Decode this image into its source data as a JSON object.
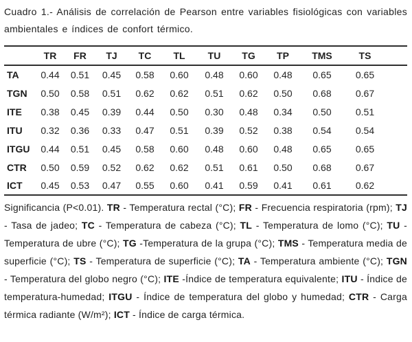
{
  "caption": "Cuadro 1.- Análisis de correlación de Pearson entre variables fisiológicas con variables ambientales e índices de confort térmico.",
  "table": {
    "columns": [
      "TR",
      "FR",
      "TJ",
      "TC",
      "TL",
      "TU",
      "TG",
      "TP",
      "TMS",
      "TS"
    ],
    "rows": [
      {
        "label": "TA",
        "values": [
          "0.44",
          "0.51",
          "0.45",
          "0.58",
          "0.60",
          "0.48",
          "0.60",
          "0.48",
          "0.65",
          "0.65"
        ]
      },
      {
        "label": "TGN",
        "values": [
          "0.50",
          "0.58",
          "0.51",
          "0.62",
          "0.62",
          "0.51",
          "0.62",
          "0.50",
          "0.68",
          "0.67"
        ]
      },
      {
        "label": "ITE",
        "values": [
          "0.38",
          "0.45",
          "0.39",
          "0.44",
          "0.50",
          "0.30",
          "0.48",
          "0.34",
          "0.50",
          "0.51"
        ]
      },
      {
        "label": "ITU",
        "values": [
          "0.32",
          "0.36",
          "0.33",
          "0.47",
          "0.51",
          "0.39",
          "0.52",
          "0.38",
          "0.54",
          "0.54"
        ]
      },
      {
        "label": "ITGU",
        "values": [
          "0.44",
          "0.51",
          "0.45",
          "0.58",
          "0.60",
          "0.48",
          "0.60",
          "0.48",
          "0.65",
          "0.65"
        ]
      },
      {
        "label": "CTR",
        "values": [
          "0.50",
          "0.59",
          "0.52",
          "0.62",
          "0.62",
          "0.51",
          "0.61",
          "0.50",
          "0.68",
          "0.67"
        ]
      },
      {
        "label": "ICT",
        "values": [
          "0.45",
          "0.53",
          "0.47",
          "0.55",
          "0.60",
          "0.41",
          "0.59",
          "0.41",
          "0.61",
          "0.62"
        ]
      }
    ]
  },
  "footnote": {
    "segments": [
      {
        "text": "Significancia (P<0.01). ",
        "bold": false
      },
      {
        "text": "TR",
        "bold": true
      },
      {
        "text": " - Temperatura rectal (°C); ",
        "bold": false
      },
      {
        "text": "FR",
        "bold": true
      },
      {
        "text": " - Frecuencia respiratoria (rpm); ",
        "bold": false
      },
      {
        "text": "TJ",
        "bold": true
      },
      {
        "text": " - Tasa de jadeo; ",
        "bold": false
      },
      {
        "text": "TC",
        "bold": true
      },
      {
        "text": " - Temperatura de cabeza (°C); ",
        "bold": false
      },
      {
        "text": "TL",
        "bold": true
      },
      {
        "text": " - Temperatura de lomo (°C); ",
        "bold": false
      },
      {
        "text": "TU",
        "bold": true
      },
      {
        "text": " - Temperatura de ubre (°C); ",
        "bold": false
      },
      {
        "text": "TG",
        "bold": true
      },
      {
        "text": " -Temperatura de la grupa (°C); ",
        "bold": false
      },
      {
        "text": "TMS",
        "bold": true
      },
      {
        "text": " - Temperatura media de superficie (°C); ",
        "bold": false
      },
      {
        "text": "TS",
        "bold": true
      },
      {
        "text": " - Temperatura de superficie (°C); ",
        "bold": false
      },
      {
        "text": "TA",
        "bold": true
      },
      {
        "text": " - Temperatura ambiente (°C); ",
        "bold": false
      },
      {
        "text": "TGN",
        "bold": true
      },
      {
        "text": " - Temperatura del globo negro (°C); ",
        "bold": false
      },
      {
        "text": "ITE",
        "bold": true
      },
      {
        "text": " -Índice de temperatura equivalente; ",
        "bold": false
      },
      {
        "text": "ITU",
        "bold": true
      },
      {
        "text": " - Índice de temperatura-humedad; ",
        "bold": false
      },
      {
        "text": "ITGU",
        "bold": true
      },
      {
        "text": " - Índice de temperatura del globo y humedad; ",
        "bold": false
      },
      {
        "text": "CTR",
        "bold": true
      },
      {
        "text": " - Carga térmica radiante (W/m²); ",
        "bold": false
      },
      {
        "text": "ICT",
        "bold": true
      },
      {
        "text": " - Índice de carga térmica.",
        "bold": false
      }
    ]
  },
  "colors": {
    "background": "#ffffff",
    "text": "#1f1f1f",
    "rule": "#2e2e2e"
  }
}
